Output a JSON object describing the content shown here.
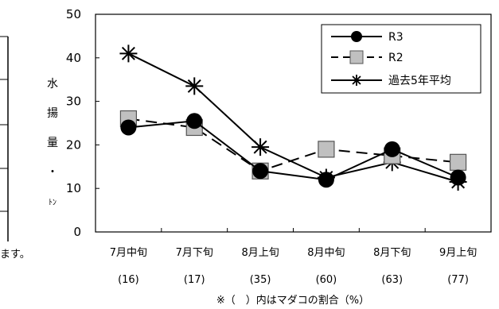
{
  "chart_data": {
    "type": "line",
    "title": "",
    "xlabel": "",
    "ylabel_chars": [
      "水",
      "揚",
      "量",
      "・",
      "ﾄﾝ"
    ],
    "ylim": [
      0,
      50
    ],
    "yticks": [
      0,
      10,
      20,
      30,
      40,
      50
    ],
    "categories": [
      "7月中旬",
      "7月下旬",
      "8月上旬",
      "8月中旬",
      "8月下旬",
      "9月上旬"
    ],
    "category_sublabels": [
      "(16)",
      "(17)",
      "(35)",
      "(60)",
      "(63)",
      "(77)"
    ],
    "footnote": "※（　）内はマダコの割合（%）",
    "clipped_left_text": "ます。",
    "grid": false,
    "legend_position": "top-right",
    "series": [
      {
        "name": "R3",
        "marker": "circle",
        "line_style": "solid",
        "values": [
          24,
          25.5,
          14,
          12,
          19,
          12.5
        ]
      },
      {
        "name": "R2",
        "marker": "square",
        "line_style": "dashed",
        "values": [
          26,
          24,
          14,
          19,
          17.5,
          16
        ]
      },
      {
        "name": "過去5年平均",
        "marker": "star",
        "line_style": "solid",
        "values": [
          41,
          33.5,
          19.5,
          12.5,
          16,
          11.5
        ]
      }
    ]
  }
}
